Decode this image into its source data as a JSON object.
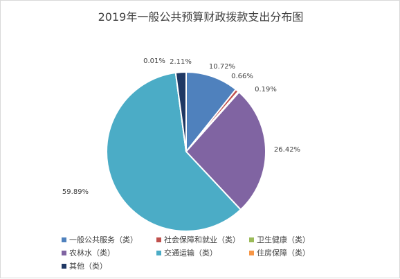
{
  "chart_data": {
    "type": "pie",
    "title": "2019年一般公共预算财政拨款支出分布图",
    "categories": [
      "一般公共服务（类）",
      "社会保障和就业（类）",
      "卫生健康（类）",
      "农林水（类）",
      "交通运输（类）",
      "住房保障（类）",
      "其他（类）"
    ],
    "values": [
      10.72,
      0.66,
      0.19,
      26.42,
      59.89,
      0.01,
      2.11
    ],
    "labels": [
      "10.72%",
      "0.66%",
      "0.19%",
      "26.42%",
      "59.89%",
      "0.01%",
      "2.11%"
    ],
    "colors": [
      "#4f81bd",
      "#c0504d",
      "#9bbb59",
      "#8064a2",
      "#4bacc6",
      "#f79646",
      "#1f3864"
    ],
    "legend_position": "bottom"
  }
}
